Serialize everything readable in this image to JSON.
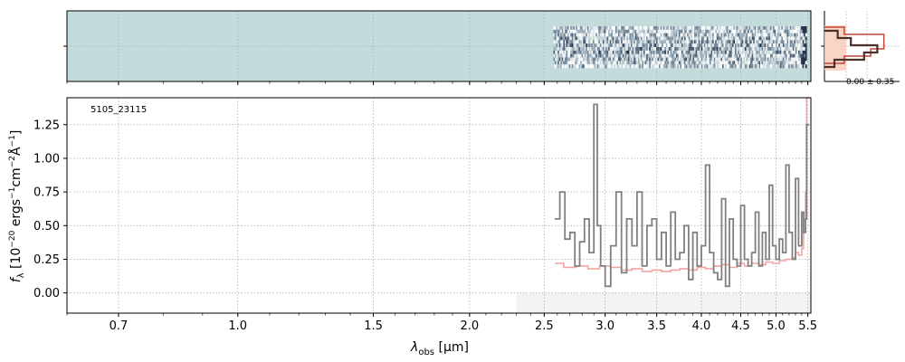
{
  "figure": {
    "object_id": "5105_23115",
    "histogram_label": "0.00 ± 0.35",
    "colors": {
      "spectrum": "#808080",
      "model": "#f4a4a0",
      "model_band": "#fde0dd",
      "image_bg": "#c3dbdb",
      "hist_band": "#f9c9b5",
      "hist_line": "#4a3028",
      "hist_edge": "#c2473a",
      "grid": "#b0b0b0"
    }
  },
  "chart_data": [
    {
      "type": "image",
      "description_panel": "2D spectrum cutout",
      "x_scale": "log",
      "xlim": [
        0.6,
        5.55
      ],
      "coverage": [
        2.57,
        5.48
      ],
      "rows": 12,
      "cols": 180
    },
    {
      "type": "line",
      "x_scale": "log",
      "xlabel": "λobs [μm]",
      "xlabel_main": "λ",
      "xlabel_sub": "obs",
      "xlabel_units": "[μm]",
      "ylabel": "fλ [10⁻²⁰ ergs⁻¹cm⁻²Å⁻¹]",
      "ylabel_main": "f",
      "ylabel_sub": "λ",
      "ylabel_units": "[10",
      "ylabel_exp1": "−20",
      "ylabel_mid": " ergs",
      "ylabel_exp2": "−1",
      "ylabel_mid2": "cm",
      "ylabel_exp3": "−2",
      "ylabel_mid3": "Å",
      "ylabel_exp4": "−1",
      "ylabel_end": "]",
      "xlim": [
        0.6,
        5.55
      ],
      "ylim": [
        -0.15,
        1.45
      ],
      "xticks": [
        0.7,
        1.0,
        1.5,
        2.0,
        2.5,
        3.0,
        3.5,
        4.0,
        4.5,
        5.0,
        5.5
      ],
      "xtick_labels": [
        "0.7",
        "1.0",
        "1.5",
        "2.0",
        "2.5",
        "3.0",
        "3.5",
        "4.0",
        "4.5",
        "5.0",
        "5.5"
      ],
      "yticks": [
        0.0,
        0.25,
        0.5,
        0.75,
        1.0,
        1.25
      ],
      "ytick_labels": [
        "0.00",
        "0.25",
        "0.50",
        "0.75",
        "1.00",
        "1.25"
      ],
      "grid": true,
      "shaded_region": {
        "x": [
          2.3,
          5.55
        ],
        "y": [
          -0.15,
          0.0
        ]
      },
      "series": [
        {
          "style": "step",
          "x": [
            2.58,
            2.62,
            2.66,
            2.7,
            2.74,
            2.78,
            2.82,
            2.86,
            2.9,
            2.93,
            2.96,
            3.0,
            3.05,
            3.1,
            3.15,
            3.2,
            3.25,
            3.3,
            3.35,
            3.4,
            3.45,
            3.5,
            3.55,
            3.6,
            3.65,
            3.7,
            3.75,
            3.8,
            3.85,
            3.9,
            3.95,
            4.0,
            4.05,
            4.1,
            4.15,
            4.2,
            4.25,
            4.3,
            4.35,
            4.4,
            4.45,
            4.5,
            4.55,
            4.6,
            4.65,
            4.7,
            4.75,
            4.8,
            4.85,
            4.9,
            4.95,
            5.0,
            5.05,
            5.1,
            5.15,
            5.2,
            5.25,
            5.3,
            5.35,
            5.4,
            5.43,
            5.46,
            5.48
          ],
          "y": [
            0.55,
            0.75,
            0.4,
            0.45,
            0.2,
            0.38,
            0.55,
            0.3,
            1.4,
            0.5,
            0.2,
            0.05,
            0.35,
            0.75,
            0.15,
            0.55,
            0.35,
            0.75,
            0.2,
            0.5,
            0.55,
            0.25,
            0.45,
            0.2,
            0.6,
            0.25,
            0.3,
            0.5,
            0.1,
            0.45,
            0.2,
            0.35,
            0.95,
            0.3,
            0.15,
            0.1,
            0.7,
            0.05,
            0.55,
            0.25,
            0.2,
            0.65,
            0.25,
            0.2,
            0.3,
            0.6,
            0.2,
            0.45,
            0.25,
            0.8,
            0.35,
            0.25,
            0.4,
            0.3,
            0.95,
            0.45,
            0.25,
            0.85,
            0.35,
            0.6,
            0.45,
            0.55,
            1.25
          ]
        },
        {
          "style": "step",
          "x": [
            2.58,
            2.65,
            2.75,
            2.85,
            2.95,
            3.05,
            3.15,
            3.25,
            3.35,
            3.45,
            3.55,
            3.65,
            3.75,
            3.85,
            3.95,
            4.05,
            4.15,
            4.25,
            4.35,
            4.45,
            4.55,
            4.65,
            4.75,
            4.85,
            4.95,
            5.05,
            5.15,
            5.25,
            5.3,
            5.35,
            5.4,
            5.43,
            5.46,
            5.48
          ],
          "y": [
            0.22,
            0.19,
            0.2,
            0.18,
            0.2,
            0.19,
            0.17,
            0.18,
            0.16,
            0.17,
            0.16,
            0.17,
            0.18,
            0.17,
            0.19,
            0.18,
            0.2,
            0.21,
            0.19,
            0.22,
            0.2,
            0.22,
            0.21,
            0.23,
            0.22,
            0.24,
            0.25,
            0.26,
            0.3,
            0.28,
            0.33,
            0.45,
            0.75,
            1.45
          ]
        }
      ]
    },
    {
      "type": "histogram",
      "ylim": [
        -0.15,
        1.45
      ],
      "bins": [
        0.02,
        0.06,
        0.1,
        0.14,
        0.18
      ],
      "counts_model": [
        0.3,
        0.9,
        0.9,
        0.7,
        0.3
      ],
      "counts_data": [
        0.2,
        0.4,
        0.8,
        0.6,
        0.15
      ]
    }
  ]
}
